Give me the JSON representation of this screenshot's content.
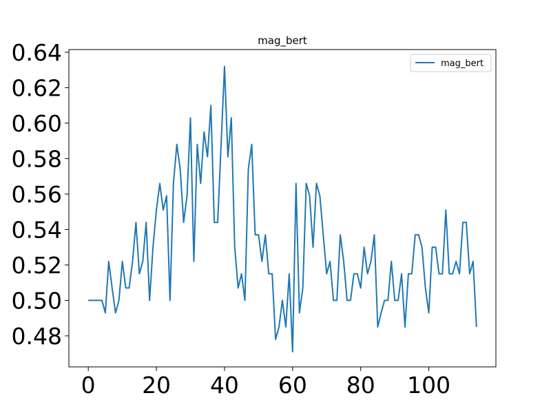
{
  "chart_data": {
    "type": "line",
    "title": "mag_bert",
    "xlabel": "",
    "ylabel": "",
    "xlim": [
      -5.7,
      119.7
    ],
    "ylim": [
      0.4625,
      0.6415
    ],
    "xticks": [
      0,
      20,
      40,
      60,
      80,
      100
    ],
    "xtick_labels": [
      "0",
      "20",
      "40",
      "60",
      "80",
      "100"
    ],
    "yticks": [
      0.48,
      0.5,
      0.52,
      0.54,
      0.56,
      0.58,
      0.6,
      0.62,
      0.64
    ],
    "ytick_labels": [
      "0.48",
      "0.50",
      "0.52",
      "0.54",
      "0.56",
      "0.58",
      "0.60",
      "0.62",
      "0.64"
    ],
    "grid": false,
    "legend": {
      "position": "top-right",
      "entries": [
        "mag_bert"
      ]
    },
    "series": [
      {
        "name": "mag_bert",
        "color": "#1f77b4",
        "x": [
          0,
          1,
          2,
          3,
          4,
          5,
          6,
          7,
          8,
          9,
          10,
          11,
          12,
          13,
          14,
          15,
          16,
          17,
          18,
          19,
          20,
          21,
          22,
          23,
          24,
          25,
          26,
          27,
          28,
          29,
          30,
          31,
          32,
          33,
          34,
          35,
          36,
          37,
          38,
          39,
          40,
          41,
          42,
          43,
          44,
          45,
          46,
          47,
          48,
          49,
          50,
          51,
          52,
          53,
          54,
          55,
          56,
          57,
          58,
          59,
          60,
          61,
          62,
          63,
          64,
          65,
          66,
          67,
          68,
          69,
          70,
          71,
          72,
          73,
          74,
          75,
          76,
          77,
          78,
          79,
          80,
          81,
          82,
          83,
          84,
          85,
          86,
          87,
          88,
          89,
          90,
          91,
          92,
          93,
          94,
          95,
          96,
          97,
          98,
          99,
          100,
          101,
          102,
          103,
          104,
          105,
          106,
          107,
          108,
          109,
          110,
          111,
          112,
          113,
          114
        ],
        "y": [
          0.5,
          0.5,
          0.5,
          0.5,
          0.5,
          0.493,
          0.522,
          0.507,
          0.493,
          0.5,
          0.522,
          0.507,
          0.507,
          0.522,
          0.544,
          0.515,
          0.522,
          0.544,
          0.5,
          0.53,
          0.551,
          0.566,
          0.551,
          0.559,
          0.5,
          0.566,
          0.588,
          0.574,
          0.544,
          0.559,
          0.603,
          0.522,
          0.588,
          0.566,
          0.595,
          0.581,
          0.61,
          0.544,
          0.544,
          0.588,
          0.632,
          0.581,
          0.603,
          0.53,
          0.507,
          0.515,
          0.5,
          0.574,
          0.588,
          0.537,
          0.537,
          0.522,
          0.537,
          0.515,
          0.515,
          0.478,
          0.485,
          0.5,
          0.485,
          0.515,
          0.471,
          0.566,
          0.493,
          0.507,
          0.566,
          0.559,
          0.53,
          0.566,
          0.559,
          0.537,
          0.515,
          0.522,
          0.5,
          0.5,
          0.537,
          0.522,
          0.5,
          0.5,
          0.515,
          0.515,
          0.507,
          0.53,
          0.515,
          0.522,
          0.537,
          0.485,
          0.493,
          0.5,
          0.5,
          0.522,
          0.5,
          0.5,
          0.515,
          0.485,
          0.515,
          0.515,
          0.537,
          0.537,
          0.53,
          0.507,
          0.493,
          0.53,
          0.53,
          0.515,
          0.515,
          0.551,
          0.515,
          0.515,
          0.522,
          0.515,
          0.544,
          0.544,
          0.515,
          0.522,
          0.485
        ]
      }
    ]
  }
}
